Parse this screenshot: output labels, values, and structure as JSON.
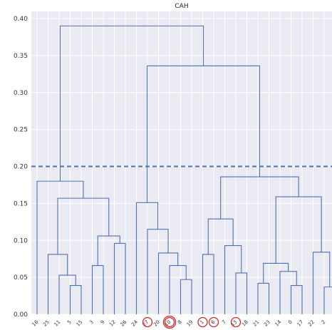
{
  "chart_data": {
    "type": "dendrogram",
    "title": "CAH",
    "xlabel": "",
    "ylabel": "",
    "ylim": [
      0,
      0.4
    ],
    "yticks": [
      "0.00",
      "0.05",
      "0.10",
      "0.15",
      "0.20",
      "0.25",
      "0.30",
      "0.35",
      "0.40"
    ],
    "grid": true,
    "leaves": [
      "16",
      "25",
      "11",
      "5",
      "15",
      "3",
      "9",
      "12",
      "26",
      "24",
      "27",
      "20",
      "10",
      "8",
      "19",
      "1",
      "6",
      "7",
      "13",
      "18",
      "21",
      "23",
      "14",
      "0",
      "17",
      "22",
      "2",
      "4"
    ],
    "highlighted_leaves": [
      "27",
      "10",
      "1",
      "6",
      "13"
    ],
    "cut_height": 0.2,
    "merges": [
      {
        "a": "5",
        "b": "15",
        "height": 0.039
      },
      {
        "a": "11",
        "b": "5+15",
        "height": 0.053
      },
      {
        "a": "25",
        "b": "11+5+15",
        "height": 0.081
      },
      {
        "a": "3",
        "b": "9",
        "height": 0.066
      },
      {
        "a": "12",
        "b": "26",
        "height": 0.096
      },
      {
        "a": "3+9",
        "b": "12+26",
        "height": 0.106
      },
      {
        "a": "25..15",
        "b": "3..26",
        "height": 0.157
      },
      {
        "a": "16",
        "b": "25..26",
        "height": 0.18
      },
      {
        "a": "8",
        "b": "19",
        "height": 0.047
      },
      {
        "a": "10",
        "b": "8+19",
        "height": 0.066
      },
      {
        "a": "20",
        "b": "10+8+19",
        "height": 0.083
      },
      {
        "a": "27",
        "b": "20..19",
        "height": 0.115
      },
      {
        "a": "24",
        "b": "27..19",
        "height": 0.151
      },
      {
        "a": "13",
        "b": "18",
        "height": 0.056
      },
      {
        "a": "7",
        "b": "13+18",
        "height": 0.093
      },
      {
        "a": "1",
        "b": "6",
        "height": 0.081
      },
      {
        "a": "1+6",
        "b": "7+13+18",
        "height": 0.129
      },
      {
        "a": "0",
        "b": "17",
        "height": 0.039
      },
      {
        "a": "14",
        "b": "0+17",
        "height": 0.058
      },
      {
        "a": "21",
        "b": "23",
        "height": 0.042
      },
      {
        "a": "21+23",
        "b": "14+0+17",
        "height": 0.069
      },
      {
        "a": "2",
        "b": "4",
        "height": 0.037
      },
      {
        "a": "22",
        "b": "2+4",
        "height": 0.084
      },
      {
        "a": "21..17",
        "b": "22+2+4",
        "height": 0.159
      },
      {
        "a": "1..18",
        "b": "21..4",
        "height": 0.186
      },
      {
        "a": "24..19",
        "b": "1..4",
        "height": 0.336
      },
      {
        "a": "16..26",
        "b": "24..4",
        "height": 0.39
      }
    ]
  }
}
